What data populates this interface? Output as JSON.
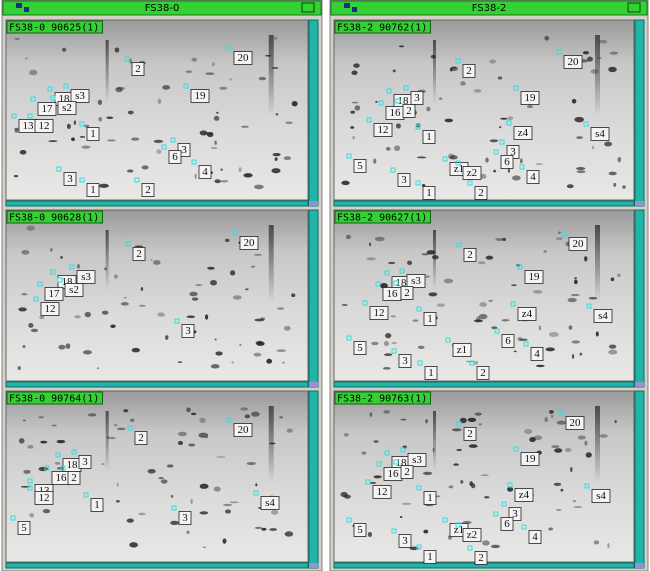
{
  "windows": [
    {
      "title": "FS38-0",
      "panels": [
        {
          "label": "FS38-0 90625(1)",
          "spots": [
            "20",
            "2",
            "19",
            "18",
            "s3",
            "s2",
            "17",
            "13",
            "12",
            "1",
            "3",
            "6",
            "4",
            "3",
            "1",
            "2"
          ]
        },
        {
          "label": "FS38-0 90628(1)",
          "spots": [
            "20",
            "2",
            "18",
            "s3",
            "17",
            "s2",
            "12",
            "3"
          ]
        },
        {
          "label": "FS38-0 90764(1)",
          "spots": [
            "20",
            "2",
            "18",
            "3",
            "16",
            "2",
            "13",
            "12",
            "1",
            "s4",
            "5",
            "3"
          ]
        }
      ]
    },
    {
      "title": "FS38-2",
      "panels": [
        {
          "label": "FS38-2 90762(1)",
          "spots": [
            "20",
            "2",
            "19",
            "18",
            "3",
            "16",
            "2",
            "12",
            "1",
            "z4",
            "s4",
            "5",
            "3",
            "6",
            "z1",
            "z2",
            "4",
            "3",
            "1",
            "2"
          ]
        },
        {
          "label": "FS38-2 90627(1)",
          "spots": [
            "20",
            "2",
            "19",
            "18",
            "s3",
            "16",
            "2",
            "12",
            "1",
            "z4",
            "s4",
            "5",
            "6",
            "z1",
            "4",
            "3",
            "1",
            "2"
          ]
        },
        {
          "label": "FS38-2 90763(1)",
          "spots": [
            "20",
            "2",
            "19",
            "18",
            "s3",
            "16",
            "2",
            "12",
            "1",
            "z4",
            "s4",
            "5",
            "3",
            "6",
            "z1",
            "z2",
            "4",
            "3",
            "1",
            "2"
          ]
        }
      ]
    }
  ]
}
